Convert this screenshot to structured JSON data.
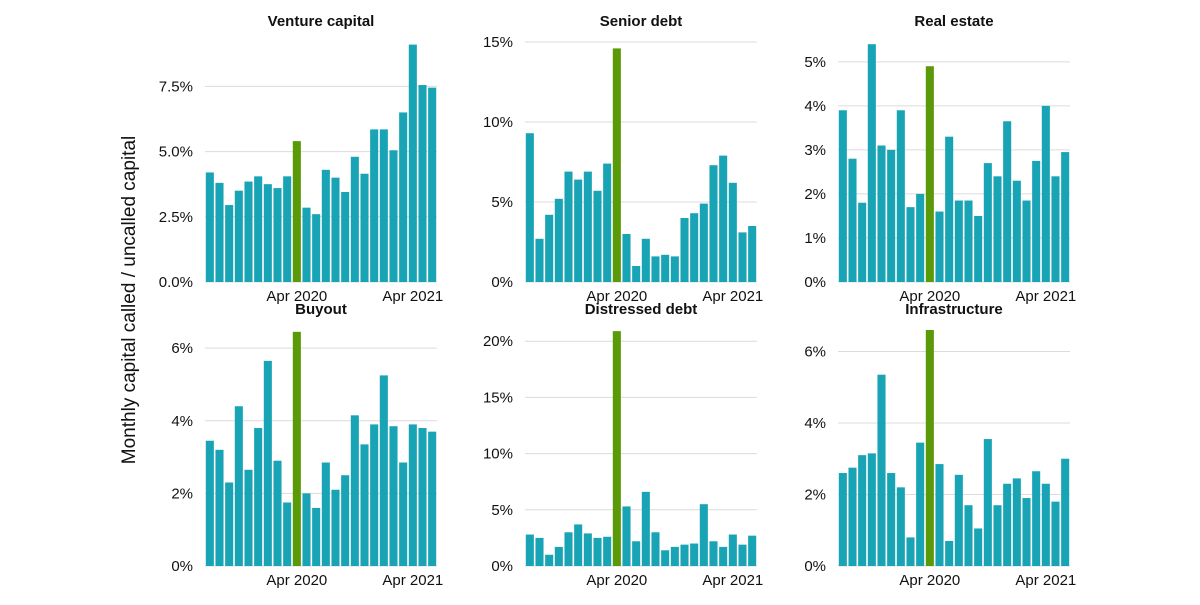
{
  "ylabel": "Monthly capital called / uncalled capital",
  "colors": {
    "bar": "#19a4b6",
    "highlight": "#5a9a08",
    "grid": "#dcdcdc",
    "text": "#111111"
  },
  "chart_data": [
    {
      "type": "bar",
      "title": "Venture capital",
      "ylim": [
        0,
        9.2
      ],
      "yticks": [
        0,
        2.5,
        5,
        7.5
      ],
      "ytick_labels": [
        "0.0%",
        "2.5%",
        "5.0%",
        "7.5%"
      ],
      "categories": [
        "Jul 2019",
        "Aug 2019",
        "Sep 2019",
        "Oct 2019",
        "Nov 2019",
        "Dec 2019",
        "Jan 2020",
        "Feb 2020",
        "Mar 2020",
        "Apr 2020",
        "May 2020",
        "Jun 2020",
        "Jul 2020",
        "Aug 2020",
        "Sep 2020",
        "Oct 2020",
        "Nov 2020",
        "Dec 2020",
        "Jan 2021",
        "Feb 2021",
        "Mar 2021",
        "Apr 2021",
        "May 2021",
        "Jun 2021"
      ],
      "values": [
        4.2,
        3.8,
        2.95,
        3.5,
        3.85,
        4.05,
        3.75,
        3.6,
        4.05,
        5.4,
        2.85,
        2.6,
        4.3,
        4.0,
        3.45,
        4.8,
        4.15,
        5.85,
        5.85,
        5.05,
        6.5,
        9.1,
        7.55,
        7.45
      ],
      "highlight": "Apr 2020",
      "xtick_labels": [
        "Apr 2020",
        "Apr 2021"
      ]
    },
    {
      "type": "bar",
      "title": "Senior debt",
      "ylim": [
        0,
        15
      ],
      "yticks": [
        0,
        5,
        10,
        15
      ],
      "ytick_labels": [
        "0%",
        "5%",
        "10%",
        "15%"
      ],
      "categories": [
        "Jul 2019",
        "Aug 2019",
        "Sep 2019",
        "Oct 2019",
        "Nov 2019",
        "Dec 2019",
        "Jan 2020",
        "Feb 2020",
        "Mar 2020",
        "Apr 2020",
        "May 2020",
        "Jun 2020",
        "Jul 2020",
        "Aug 2020",
        "Sep 2020",
        "Oct 2020",
        "Nov 2020",
        "Dec 2020",
        "Jan 2021",
        "Feb 2021",
        "Mar 2021",
        "Apr 2021",
        "May 2021",
        "Jun 2021"
      ],
      "values": [
        9.3,
        2.7,
        4.2,
        5.2,
        6.9,
        6.4,
        6.9,
        5.7,
        7.4,
        14.6,
        3.0,
        1.0,
        2.7,
        1.6,
        1.7,
        1.6,
        4.0,
        4.3,
        4.9,
        7.3,
        7.9,
        6.2,
        3.1,
        3.5
      ],
      "highlight": "Apr 2020",
      "xtick_labels": [
        "Apr 2020",
        "Apr 2021"
      ]
    },
    {
      "type": "bar",
      "title": "Real estate",
      "ylim": [
        0,
        5.45
      ],
      "yticks": [
        0,
        1,
        2,
        3,
        4,
        5
      ],
      "ytick_labels": [
        "0%",
        "1%",
        "2%",
        "3%",
        "4%",
        "5%"
      ],
      "categories": [
        "Jul 2019",
        "Aug 2019",
        "Sep 2019",
        "Oct 2019",
        "Nov 2019",
        "Dec 2019",
        "Jan 2020",
        "Feb 2020",
        "Mar 2020",
        "Apr 2020",
        "May 2020",
        "Jun 2020",
        "Jul 2020",
        "Aug 2020",
        "Sep 2020",
        "Oct 2020",
        "Nov 2020",
        "Dec 2020",
        "Jan 2021",
        "Feb 2021",
        "Mar 2021",
        "Apr 2021",
        "May 2021",
        "Jun 2021"
      ],
      "values": [
        3.9,
        2.8,
        1.8,
        5.4,
        3.1,
        3.0,
        3.9,
        1.7,
        2.0,
        4.9,
        1.6,
        3.3,
        1.85,
        1.85,
        1.5,
        2.7,
        2.4,
        3.65,
        2.3,
        1.85,
        2.75,
        4.0,
        2.4,
        2.95
      ],
      "highlight": "Apr 2020",
      "xtick_labels": [
        "Apr 2020",
        "Apr 2021"
      ]
    },
    {
      "type": "bar",
      "title": "Buyout",
      "ylim": [
        0,
        6.5
      ],
      "yticks": [
        0,
        2,
        4,
        6
      ],
      "ytick_labels": [
        "0%",
        "2%",
        "4%",
        "6%"
      ],
      "categories": [
        "Jul 2019",
        "Aug 2019",
        "Sep 2019",
        "Oct 2019",
        "Nov 2019",
        "Dec 2019",
        "Jan 2020",
        "Feb 2020",
        "Mar 2020",
        "Apr 2020",
        "May 2020",
        "Jun 2020",
        "Jul 2020",
        "Aug 2020",
        "Sep 2020",
        "Oct 2020",
        "Nov 2020",
        "Dec 2020",
        "Jan 2021",
        "Feb 2021",
        "Mar 2021",
        "Apr 2021",
        "May 2021",
        "Jun 2021"
      ],
      "values": [
        3.45,
        3.2,
        2.3,
        4.4,
        2.65,
        3.8,
        5.65,
        2.9,
        1.75,
        6.45,
        2.0,
        1.6,
        2.85,
        2.1,
        2.5,
        4.15,
        3.35,
        3.9,
        5.25,
        3.85,
        2.85,
        3.9,
        3.8,
        3.7
      ],
      "highlight": "Apr 2020",
      "xtick_labels": [
        "Apr 2020",
        "Apr 2021"
      ]
    },
    {
      "type": "bar",
      "title": "Distressed debt",
      "ylim": [
        0,
        21
      ],
      "yticks": [
        0,
        5,
        10,
        15,
        20
      ],
      "ytick_labels": [
        "0%",
        "5%",
        "10%",
        "15%",
        "20%"
      ],
      "categories": [
        "Jul 2019",
        "Aug 2019",
        "Sep 2019",
        "Oct 2019",
        "Nov 2019",
        "Dec 2019",
        "Jan 2020",
        "Feb 2020",
        "Mar 2020",
        "Apr 2020",
        "May 2020",
        "Jun 2020",
        "Jul 2020",
        "Aug 2020",
        "Sep 2020",
        "Oct 2020",
        "Nov 2020",
        "Dec 2020",
        "Jan 2021",
        "Feb 2021",
        "Mar 2021",
        "Apr 2021",
        "May 2021",
        "Jun 2021"
      ],
      "values": [
        2.8,
        2.5,
        1.0,
        1.7,
        3.0,
        3.7,
        2.9,
        2.5,
        2.6,
        20.9,
        5.3,
        2.2,
        6.6,
        3.0,
        1.4,
        1.7,
        1.9,
        2.0,
        5.5,
        2.2,
        1.7,
        2.8,
        1.9,
        2.7
      ],
      "highlight": "Apr 2020",
      "xtick_labels": [
        "Apr 2020",
        "Apr 2021"
      ]
    },
    {
      "type": "bar",
      "title": "Infrastructure",
      "ylim": [
        0,
        6.6
      ],
      "yticks": [
        0,
        2,
        4,
        6
      ],
      "ytick_labels": [
        "0%",
        "2%",
        "4%",
        "6%"
      ],
      "categories": [
        "Jul 2019",
        "Aug 2019",
        "Sep 2019",
        "Oct 2019",
        "Nov 2019",
        "Dec 2019",
        "Jan 2020",
        "Feb 2020",
        "Mar 2020",
        "Apr 2020",
        "May 2020",
        "Jun 2020",
        "Jul 2020",
        "Aug 2020",
        "Sep 2020",
        "Oct 2020",
        "Nov 2020",
        "Dec 2020",
        "Jan 2021",
        "Feb 2021",
        "Mar 2021",
        "Apr 2021",
        "May 2021",
        "Jun 2021"
      ],
      "values": [
        2.6,
        2.75,
        3.1,
        3.15,
        5.35,
        2.6,
        2.2,
        0.8,
        3.45,
        6.6,
        2.85,
        0.7,
        2.55,
        1.7,
        1.05,
        3.55,
        1.7,
        2.3,
        2.45,
        1.9,
        2.65,
        2.3,
        1.8,
        3.0
      ],
      "highlight": "Apr 2020",
      "xtick_labels": [
        "Apr 2020",
        "Apr 2021"
      ]
    }
  ]
}
